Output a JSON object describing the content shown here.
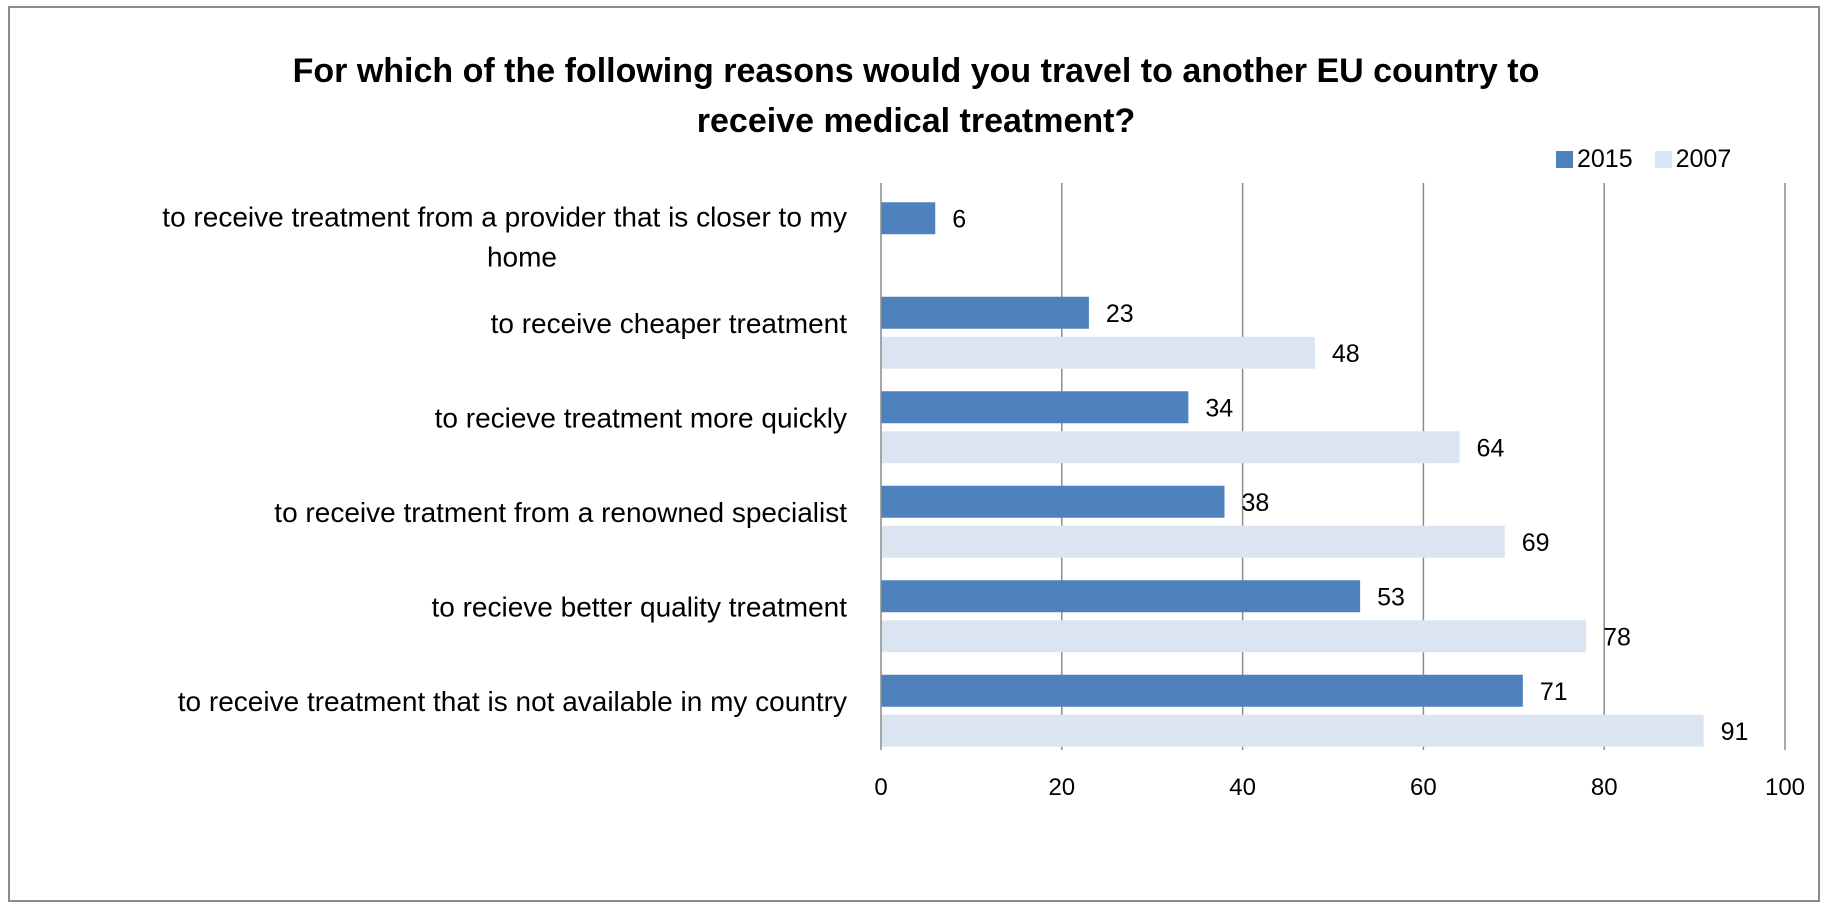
{
  "chart_data": {
    "type": "bar",
    "orientation": "horizontal",
    "title": "For which of the following reasons would you travel to another EU country to\nreceive medical treatment?",
    "xlabel": "",
    "ylabel": "",
    "xlim": [
      0,
      100
    ],
    "x_ticks": [
      "0",
      "20",
      "40",
      "60",
      "80",
      "100"
    ],
    "grid": "vertical",
    "legend_position": "top-right",
    "categories": [
      [
        "to receive treatment from a provider that is closer to my",
        "home"
      ],
      [
        "to receive cheaper treatment"
      ],
      [
        "to recieve treatment more quickly"
      ],
      [
        "to receive tratment from a renowned specialist"
      ],
      [
        "to recieve better quality treatment"
      ],
      [
        "to receive treatment that is not available in my country"
      ]
    ],
    "series": [
      {
        "name": "2015",
        "color": "#4f81bd",
        "values": [
          6,
          23,
          34,
          38,
          53,
          71
        ]
      },
      {
        "name": "2007",
        "color": "#dbe5f1",
        "values": [
          null,
          48,
          64,
          69,
          78,
          91
        ]
      }
    ]
  }
}
